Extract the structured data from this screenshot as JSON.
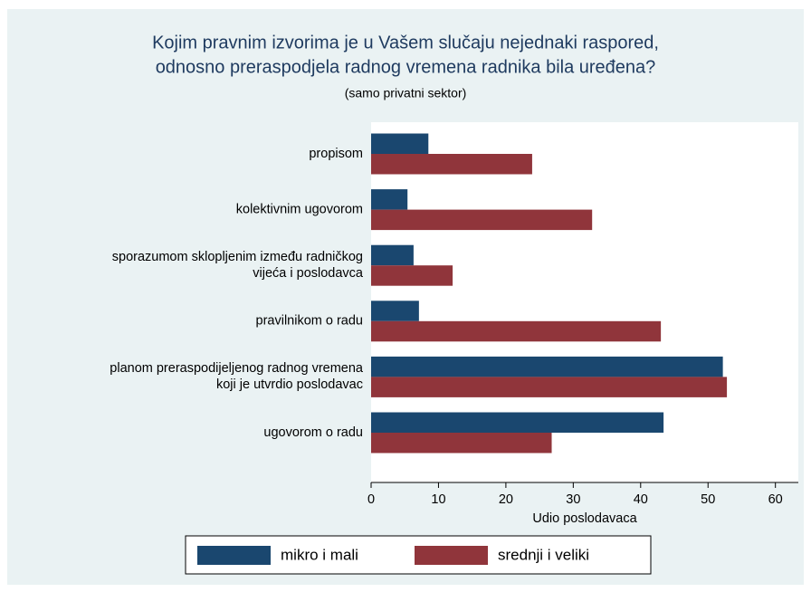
{
  "chart_data": {
    "type": "bar",
    "orientation": "horizontal",
    "title": [
      "Kojim pravnim izvorima je u Vašem slučaju nejednaki raspored,",
      "odnosno preraspodjela radnog vremena radnika bila uređena?"
    ],
    "subtitle": "(samo privatni sektor)",
    "categories": [
      [
        "propisom"
      ],
      [
        "kolektivnim ugovorom"
      ],
      [
        "sporazumom sklopljenim između radničkog",
        "vijeća i poslodavca"
      ],
      [
        "pravilnikom o radu"
      ],
      [
        "planom preraspodijeljenog radnog vremena",
        "koji je utvrdio poslodavac"
      ],
      [
        "ugovorom o radu"
      ]
    ],
    "series": [
      {
        "name": "mikro i mali",
        "color": "#1a476f",
        "values": [
          8.5,
          5.4,
          6.3,
          7.1,
          52.2,
          43.4
        ]
      },
      {
        "name": "srednji i veliki",
        "color": "#90353b",
        "values": [
          23.9,
          32.8,
          12.1,
          43.0,
          52.8,
          26.8
        ]
      }
    ],
    "xlabel": "Udio poslodavaca",
    "xlim": [
      0,
      63.4
    ],
    "xticks": [
      0,
      10,
      20,
      30,
      40,
      50,
      60
    ],
    "grid": false,
    "legend": "bottom"
  }
}
